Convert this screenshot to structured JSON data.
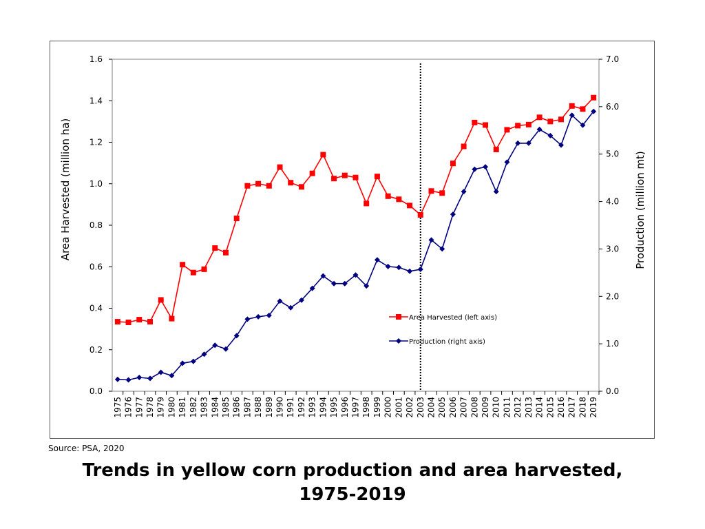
{
  "source_note": "Source: PSA, 2020",
  "caption": {
    "line1": "Trends in yellow corn production and area harvested,",
    "line2": "1975-2019"
  },
  "chart_data": {
    "type": "line",
    "x": [
      "1975",
      "1976",
      "1977",
      "1978",
      "1979",
      "1980",
      "1981",
      "1982",
      "1983",
      "1984",
      "1985",
      "1986",
      "1987",
      "1988",
      "1989",
      "1990",
      "1991",
      "1992",
      "1993",
      "1994",
      "1995",
      "1996",
      "1997",
      "1998",
      "1999",
      "2000",
      "2001",
      "2002",
      "2003",
      "2004",
      "2005",
      "2006",
      "2007",
      "2008",
      "2009",
      "2010",
      "2011",
      "2012",
      "2013",
      "2014",
      "2015",
      "2016",
      "2017",
      "2018",
      "2019"
    ],
    "left_axis": {
      "label": "Area Harvested (million ha)",
      "range": [
        0,
        1.6
      ],
      "ticks": [
        "0.0",
        "0.2",
        "0.4",
        "0.6",
        "0.8",
        "1.0",
        "1.2",
        "1.4",
        "1.6"
      ]
    },
    "right_axis": {
      "label": "Production (million mt)",
      "range": [
        0,
        7.0
      ],
      "ticks": [
        "0.0",
        "1.0",
        "2.0",
        "3.0",
        "4.0",
        "5.0",
        "6.0",
        "7.0"
      ]
    },
    "series": [
      {
        "name": "Area Harvested (left axis)",
        "axis": "left",
        "color": "#ff0000",
        "marker": "square",
        "values": [
          0.335,
          0.332,
          0.345,
          0.335,
          0.44,
          0.35,
          0.61,
          0.572,
          0.588,
          0.69,
          0.668,
          0.833,
          0.99,
          1.0,
          0.99,
          1.08,
          1.005,
          0.985,
          1.05,
          1.14,
          1.025,
          1.04,
          1.03,
          0.905,
          1.035,
          0.94,
          0.925,
          0.895,
          0.85,
          0.965,
          0.955,
          1.098,
          1.18,
          1.295,
          1.283,
          1.165,
          1.26,
          1.28,
          1.285,
          1.32,
          1.3,
          1.31,
          1.375,
          1.36,
          1.415
        ]
      },
      {
        "name": "Production (right axis)",
        "axis": "right",
        "color": "#000080",
        "marker": "diamond",
        "values": [
          0.25,
          0.24,
          0.29,
          0.27,
          0.4,
          0.33,
          0.59,
          0.63,
          0.78,
          0.97,
          0.89,
          1.17,
          1.52,
          1.57,
          1.6,
          1.9,
          1.76,
          1.92,
          2.17,
          2.43,
          2.27,
          2.27,
          2.45,
          2.22,
          2.77,
          2.63,
          2.61,
          2.53,
          2.57,
          3.19,
          3.0,
          3.73,
          4.21,
          4.68,
          4.73,
          4.21,
          4.83,
          5.23,
          5.23,
          5.52,
          5.39,
          5.19,
          5.82,
          5.61,
          5.9
        ]
      }
    ],
    "vertical_marker": {
      "x": "2003",
      "style": "dotted"
    },
    "grid": false,
    "legend_position": "lower-right"
  }
}
